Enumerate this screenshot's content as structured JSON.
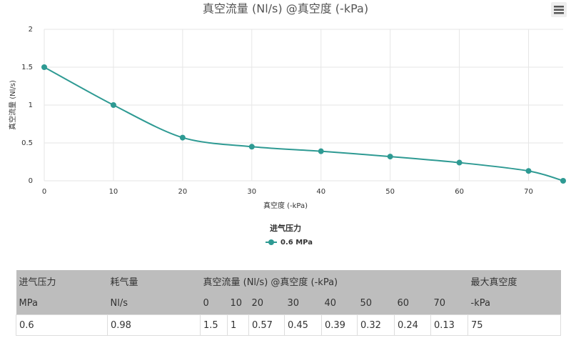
{
  "chart_data": {
    "type": "line",
    "title": "真空流量 (Nl/s) @真空度 (-kPa)",
    "x_label": "真空度 (-kPa)",
    "y_label": "真空流量 (Nl/s)",
    "legend_title": "进气压力",
    "x": [
      0,
      10,
      20,
      30,
      40,
      50,
      60,
      70,
      75
    ],
    "series": [
      {
        "name": "0.6 MPa",
        "color": "#2e9a93",
        "values": [
          1.5,
          1,
          0.57,
          0.45,
          0.39,
          0.32,
          0.24,
          0.13,
          0
        ]
      }
    ],
    "xlim": [
      0,
      75
    ],
    "xticks": [
      0,
      10,
      20,
      30,
      40,
      50,
      60,
      70
    ],
    "ylim": [
      0,
      2
    ],
    "yticks": [
      0,
      0.5,
      1,
      1.5,
      2
    ],
    "grid": true
  },
  "table": {
    "header": [
      [
        "进气压力",
        "耗气量",
        "真空流量 (Nl/s) @真空度 (-kPa)",
        "最大真空度"
      ],
      [
        "MPa",
        "Nl/s",
        "0",
        "10",
        "20",
        "30",
        "40",
        "50",
        "60",
        "70",
        "-kPa"
      ]
    ],
    "rows": [
      [
        "0.6",
        "0.98",
        "1.5",
        "1",
        "0.57",
        "0.45",
        "0.39",
        "0.32",
        "0.24",
        "0.13",
        "75"
      ]
    ]
  }
}
